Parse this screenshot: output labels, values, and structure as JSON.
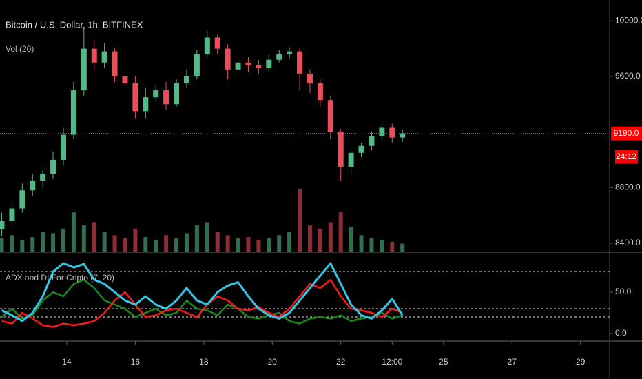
{
  "chart_data": {
    "type": "candlestick",
    "title": "Bitcoin / U.S. Dollar, 1h, BITFINEX",
    "up_color": "#53b987",
    "down_color": "#eb4d5c",
    "x": [
      12.1,
      12.4,
      12.7,
      13.0,
      13.3,
      13.6,
      13.9,
      14.2,
      14.5,
      14.8,
      15.1,
      15.4,
      15.7,
      16.0,
      16.3,
      16.6,
      16.9,
      17.2,
      17.5,
      17.8,
      18.1,
      18.4,
      18.7,
      19.0,
      19.3,
      19.6,
      19.9,
      20.2,
      20.5,
      20.8,
      21.1,
      21.4,
      21.7,
      22.0,
      22.3,
      22.6,
      22.9,
      23.2,
      23.5,
      23.8
    ],
    "open": [
      8500,
      8560,
      8650,
      8780,
      8850,
      8900,
      9000,
      9180,
      9500,
      9800,
      9700,
      9780,
      9600,
      9550,
      9350,
      9450,
      9500,
      9400,
      9550,
      9600,
      9760,
      9880,
      9800,
      9650,
      9700,
      9680,
      9660,
      9720,
      9760,
      9780,
      9620,
      9550,
      9430,
      9200,
      8950,
      9050,
      9100,
      9170,
      9230,
      9160
    ],
    "high": [
      8620,
      8700,
      8830,
      8900,
      8930,
      9060,
      9230,
      9560,
      9950,
      9860,
      9840,
      9800,
      9650,
      9600,
      9520,
      9540,
      9560,
      9580,
      9650,
      9790,
      9930,
      9900,
      9830,
      9740,
      9740,
      9720,
      9760,
      9790,
      9810,
      9800,
      9650,
      9580,
      9460,
      9220,
      9080,
      9120,
      9200,
      9270,
      9260,
      9220
    ],
    "low": [
      8450,
      8520,
      8620,
      8740,
      8800,
      8860,
      8960,
      9150,
      9460,
      9650,
      9660,
      9560,
      9500,
      9300,
      9300,
      9420,
      9360,
      9380,
      9520,
      9580,
      9740,
      9760,
      9580,
      9600,
      9630,
      9620,
      9640,
      9700,
      9730,
      9500,
      9480,
      9380,
      9150,
      8850,
      8900,
      9020,
      9070,
      9140,
      9120,
      9130
    ],
    "close": [
      8560,
      8650,
      8780,
      8850,
      8900,
      9000,
      9180,
      9500,
      9800,
      9700,
      9780,
      9600,
      9550,
      9350,
      9450,
      9500,
      9400,
      9550,
      9600,
      9760,
      9880,
      9800,
      9650,
      9700,
      9680,
      9660,
      9720,
      9760,
      9780,
      9620,
      9550,
      9430,
      9200,
      8950,
      9050,
      9100,
      9170,
      9230,
      9160,
      9190
    ],
    "xlim": [
      12.05,
      29.85
    ],
    "xticks": [
      14,
      16,
      18,
      20,
      22,
      {
        "value": 23.5,
        "label": "12:00"
      },
      25,
      27,
      29
    ],
    "ylim": [
      8340,
      10150
    ],
    "yticks": [
      {
        "value": 8400,
        "label": "8400.0"
      },
      {
        "value": 8800,
        "label": "8800.0"
      },
      {
        "value": 9600,
        "label": "9600.0"
      },
      {
        "value": 10000,
        "label": "10000.0"
      }
    ],
    "last_price": {
      "value": 9190,
      "label": "9190.0"
    },
    "countdown": "24:12",
    "volume": {
      "title": "Vol (20)",
      "values": [
        20,
        25,
        18,
        22,
        30,
        28,
        35,
        60,
        40,
        45,
        30,
        25,
        20,
        35,
        22,
        18,
        25,
        20,
        28,
        40,
        45,
        30,
        25,
        20,
        22,
        18,
        20,
        25,
        30,
        95,
        40,
        35,
        45,
        60,
        38,
        25,
        20,
        18,
        15,
        12
      ]
    },
    "indicator": {
      "type": "line",
      "title": "ADX and DI For Cripto (7, 20)",
      "ylim": [
        -9.2,
        96.7
      ],
      "yticks": [
        {
          "value": 0,
          "label": "0.0"
        },
        {
          "value": 50,
          "label": "50.0"
        }
      ],
      "levels": [
        75,
        30,
        20
      ],
      "series": [
        {
          "color": "#1a8a1a",
          "values": [
            20,
            30,
            18,
            22,
            40,
            50,
            45,
            60,
            65,
            55,
            40,
            35,
            30,
            20,
            25,
            30,
            22,
            25,
            40,
            30,
            28,
            22,
            35,
            30,
            20,
            18,
            22,
            25,
            15,
            12,
            18,
            20,
            18,
            22,
            15,
            18,
            20,
            25,
            18,
            22
          ]
        },
        {
          "color": "#ff1a1a",
          "values": [
            15,
            12,
            25,
            18,
            10,
            8,
            12,
            10,
            12,
            15,
            25,
            40,
            50,
            35,
            20,
            22,
            28,
            30,
            25,
            20,
            35,
            45,
            40,
            30,
            28,
            32,
            25,
            20,
            30,
            45,
            60,
            55,
            65,
            45,
            30,
            28,
            25,
            20,
            30,
            25
          ]
        },
        {
          "color": "#2fc8e8",
          "values": [
            28,
            22,
            15,
            25,
            45,
            75,
            85,
            80,
            84,
            65,
            60,
            50,
            40,
            35,
            45,
            35,
            30,
            40,
            55,
            40,
            35,
            50,
            58,
            62,
            45,
            30,
            22,
            18,
            25,
            40,
            55,
            70,
            85,
            60,
            35,
            22,
            18,
            28,
            42,
            22
          ]
        }
      ]
    }
  }
}
